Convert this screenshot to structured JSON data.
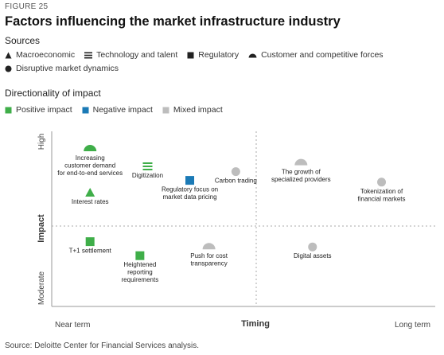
{
  "figure_label": "FIGURE 25",
  "title": "Factors influencing the market infrastructure industry",
  "sources": {
    "heading": "Sources",
    "items": [
      {
        "key": "macro",
        "label": "Macroeconomic",
        "icon": "triangle-icon"
      },
      {
        "key": "tech",
        "label": "Technology and talent",
        "icon": "stacked-lines-icon"
      },
      {
        "key": "reg",
        "label": "Regulatory",
        "icon": "square-icon"
      },
      {
        "key": "cust",
        "label": "Customer and competitive forces",
        "icon": "half-circle-icon"
      },
      {
        "key": "disr",
        "label": "Disruptive market dynamics",
        "icon": "circle-icon"
      }
    ]
  },
  "directionality": {
    "heading": "Directionality of impact",
    "items": [
      {
        "key": "positive",
        "label": "Positive impact",
        "color": "#3fae49"
      },
      {
        "key": "negative",
        "label": "Negative impact",
        "color": "#1b7ab6"
      },
      {
        "key": "mixed",
        "label": "Mixed impact",
        "color": "#bdbdbd"
      }
    ]
  },
  "chart_data": {
    "type": "scatter",
    "xlabel": "Timing",
    "ylabel": "Impact",
    "x_tick_labels": [
      "Near term",
      "Long term"
    ],
    "y_tick_labels": [
      "High",
      "Moderate"
    ],
    "points": [
      {
        "label": "Increasing customer demand for end-to-end services",
        "lines": [
          "Increasing",
          "customer demand",
          "for end-to-end services"
        ],
        "x": 0.1,
        "y": 0.9,
        "source": "cust",
        "impact": "positive"
      },
      {
        "label": "Digitization",
        "lines": [
          "Digitization"
        ],
        "x": 0.25,
        "y": 0.8,
        "source": "tech",
        "impact": "positive"
      },
      {
        "label": "Carbon trading",
        "lines": [
          "Carbon trading"
        ],
        "x": 0.48,
        "y": 0.77,
        "source": "disr",
        "impact": "mixed"
      },
      {
        "label": "The growth of specialized providers",
        "lines": [
          "The growth of",
          "specialized providers"
        ],
        "x": 0.65,
        "y": 0.82,
        "source": "cust",
        "impact": "mixed"
      },
      {
        "label": "Regulatory focus on market data pricing",
        "lines": [
          "Regulatory focus on",
          "market data pricing"
        ],
        "x": 0.36,
        "y": 0.72,
        "source": "reg",
        "impact": "negative"
      },
      {
        "label": "Tokenization of financial markets",
        "lines": [
          "Tokenization of",
          "financial markets"
        ],
        "x": 0.86,
        "y": 0.71,
        "source": "disr",
        "impact": "mixed"
      },
      {
        "label": "Interest rates",
        "lines": [
          "Interest rates"
        ],
        "x": 0.1,
        "y": 0.65,
        "source": "macro",
        "impact": "positive"
      },
      {
        "label": "T+1 settlement",
        "lines": [
          "T+1 settlement"
        ],
        "x": 0.1,
        "y": 0.37,
        "source": "reg",
        "impact": "positive"
      },
      {
        "label": "Push for cost transparency",
        "lines": [
          "Push for cost",
          "transparency"
        ],
        "x": 0.41,
        "y": 0.34,
        "source": "cust",
        "impact": "mixed"
      },
      {
        "label": "Digital assets",
        "lines": [
          "Digital assets"
        ],
        "x": 0.68,
        "y": 0.34,
        "source": "disr",
        "impact": "mixed"
      },
      {
        "label": "Heightened reporting requirements",
        "lines": [
          "Heightened",
          "reporting",
          "requirements"
        ],
        "x": 0.23,
        "y": 0.29,
        "source": "reg",
        "impact": "positive"
      }
    ]
  },
  "footer": "Source: Deloitte Center for Financial Services analysis."
}
